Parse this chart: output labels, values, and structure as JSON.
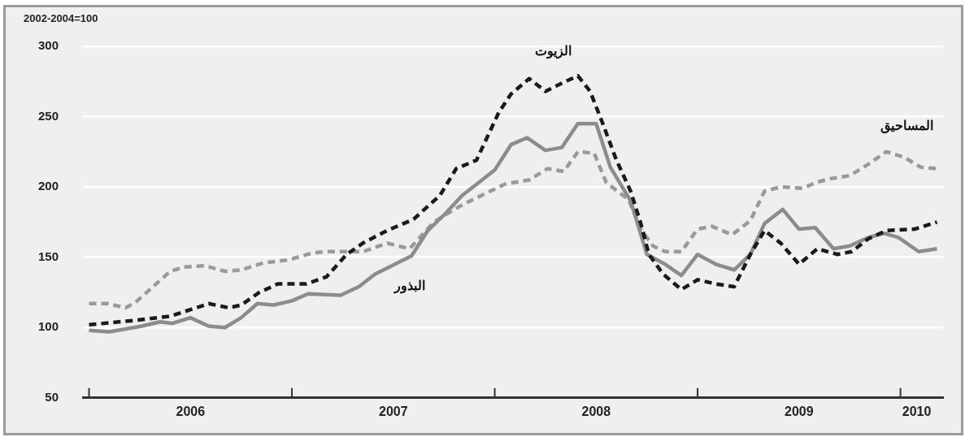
{
  "chart_data": {
    "type": "line",
    "ylabel": "2002-2004=100",
    "xlim": [
      2005.97,
      2010.21
    ],
    "ylim": [
      50,
      300
    ],
    "yticks": [
      50,
      100,
      150,
      200,
      250,
      300
    ],
    "xticks": [
      {
        "value": 2006,
        "label": null
      },
      {
        "value": 2006.5,
        "label": "2006"
      },
      {
        "value": 2007,
        "label": null
      },
      {
        "value": 2007.5,
        "label": "2007"
      },
      {
        "value": 2008,
        "label": null
      },
      {
        "value": 2008.5,
        "label": "2008"
      },
      {
        "value": 2009,
        "label": null
      },
      {
        "value": 2009.5,
        "label": "2009"
      },
      {
        "value": 2010,
        "label": null
      },
      {
        "value": 2010.08,
        "label": "2010"
      }
    ],
    "grid": "y",
    "legend": false,
    "marker": "none",
    "series": [
      {
        "name": "الزيوت",
        "color": "#1a1a1a",
        "line_style": "dashed",
        "x": [
          2006.0,
          2006.22,
          2006.4,
          2006.59,
          2006.69,
          2006.75,
          2006.84,
          2006.93,
          2007.07,
          2007.17,
          2007.27,
          2007.35,
          2007.47,
          2007.6,
          2007.73,
          2007.81,
          2007.91,
          2008.02,
          2008.08,
          2008.17,
          2008.25,
          2008.32,
          2008.41,
          2008.47,
          2008.53,
          2008.6,
          2008.67,
          2008.72,
          2008.76,
          2008.83,
          2008.92,
          2009.0,
          2009.09,
          2009.18,
          2009.26,
          2009.33,
          2009.41,
          2009.5,
          2009.59,
          2009.69,
          2009.76,
          2009.84,
          2009.93,
          2010.07,
          2010.18
        ],
        "values": [
          102,
          105,
          108,
          117,
          114,
          116,
          125,
          131,
          131,
          136,
          152,
          160,
          169,
          177,
          194,
          213,
          219,
          253,
          266,
          277,
          268,
          273,
          279,
          268,
          246,
          219,
          197,
          174,
          152,
          138,
          127,
          134,
          131,
          129,
          152,
          169,
          160,
          145,
          156,
          152,
          154,
          163,
          169,
          170,
          175
        ]
      },
      {
        "name": "البذور",
        "color": "#8c8c8c",
        "line_style": "solid",
        "x": [
          2006.0,
          2006.1,
          2006.26,
          2006.35,
          2006.41,
          2006.5,
          2006.59,
          2006.67,
          2006.75,
          2006.83,
          2006.91,
          2007.0,
          2007.08,
          2007.24,
          2007.33,
          2007.41,
          2007.59,
          2007.67,
          2007.75,
          2007.84,
          2007.92,
          2008.0,
          2008.08,
          2008.16,
          2008.25,
          2008.33,
          2008.41,
          2008.5,
          2008.57,
          2008.67,
          2008.75,
          2008.84,
          2008.92,
          2009.0,
          2009.09,
          2009.18,
          2009.26,
          2009.33,
          2009.42,
          2009.5,
          2009.58,
          2009.67,
          2009.75,
          2009.84,
          2009.92,
          2009.99,
          2010.09,
          2010.18
        ],
        "values": [
          98,
          97,
          101,
          104,
          103,
          107,
          101,
          100,
          107,
          117,
          116,
          119,
          124,
          123,
          129,
          138,
          151,
          169,
          180,
          194,
          203,
          212,
          230,
          235,
          226,
          228,
          245,
          245,
          214,
          190,
          152,
          145,
          137,
          152,
          145,
          141,
          152,
          174,
          184,
          170,
          171,
          156,
          158,
          164,
          167,
          164,
          154,
          156
        ]
      },
      {
        "name": "المساحيق",
        "color": "#9a9a9a",
        "line_style": "dashed",
        "x": [
          2006.0,
          2006.09,
          2006.18,
          2006.23,
          2006.3,
          2006.4,
          2006.47,
          2006.57,
          2006.67,
          2006.75,
          2006.86,
          2006.98,
          2007.1,
          2007.17,
          2007.35,
          2007.47,
          2007.58,
          2007.7,
          2007.8,
          2007.85,
          2007.95,
          2008.05,
          2008.17,
          2008.26,
          2008.34,
          2008.41,
          2008.49,
          2008.55,
          2008.66,
          2008.72,
          2008.78,
          2008.84,
          2008.92,
          2009.0,
          2009.07,
          2009.17,
          2009.26,
          2009.33,
          2009.41,
          2009.52,
          2009.58,
          2009.66,
          2009.75,
          2009.84,
          2009.93,
          2010.02,
          2010.1,
          2010.18
        ],
        "values": [
          117,
          117,
          114,
          118,
          127,
          140,
          143,
          144,
          140,
          141,
          146,
          148,
          153,
          154,
          154,
          160,
          156,
          175,
          184,
          188,
          195,
          202,
          205,
          213,
          211,
          225,
          224,
          203,
          191,
          170,
          158,
          154,
          154,
          170,
          172,
          166,
          176,
          197,
          200,
          199,
          203,
          206,
          208,
          216,
          225,
          221,
          214,
          213
        ]
      }
    ]
  }
}
